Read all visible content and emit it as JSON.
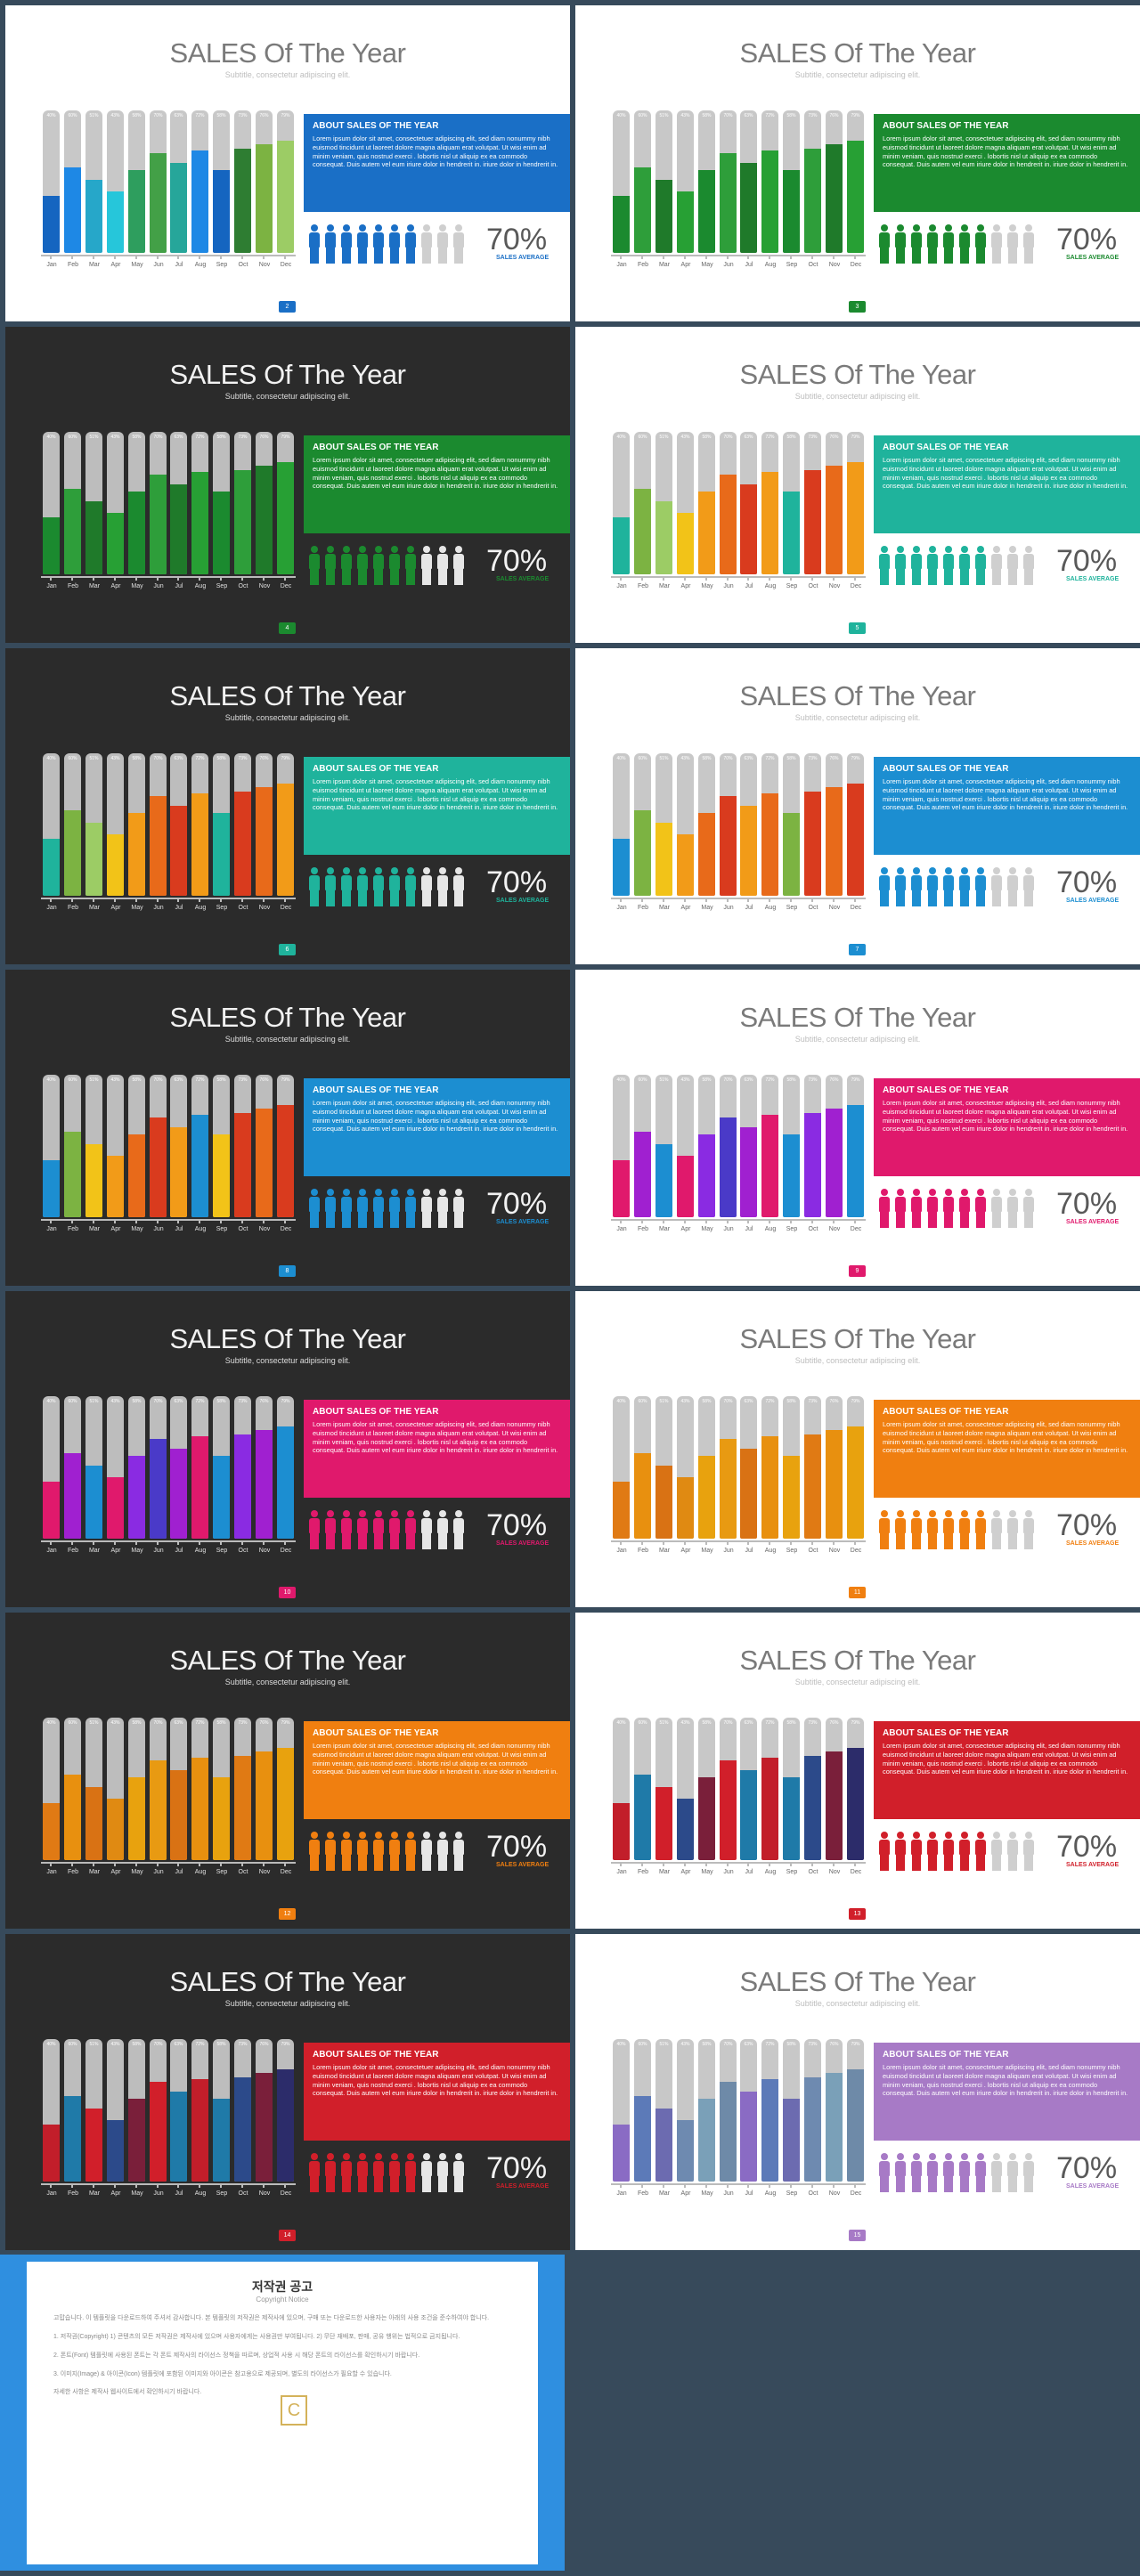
{
  "common": {
    "title": "SALES Of The Year",
    "subtitle": "Subtitle, consectetur adipiscing elit.",
    "panel_title": "ABOUT SALES OF THE YEAR",
    "panel_body": "Lorem ipsum dolor sit amet, consectetuer adipiscing elit, sed diam nonummy nibh euismod tincidunt ut laoreet dolore magna aliquam erat volutpat. Ut wisi enim ad minim veniam, quis nostrud exerci . lobortis nisl ut aliquip ex ea commodo consequat. Duis autem vel eum iriure dolor in hendrerit in. iriure dolor in hendrerit in.",
    "percent": "70%",
    "average_label": "SALES AVERAGE",
    "figures_total": 10,
    "figures_filled": 7
  },
  "chart_data": {
    "type": "bar",
    "categories": [
      "Jan",
      "Feb",
      "Mar",
      "Apr",
      "May",
      "Jun",
      "Jul",
      "Aug",
      "Sep",
      "Oct",
      "Nov",
      "Dec"
    ],
    "values": [
      40,
      60,
      51,
      43,
      58,
      70,
      63,
      72,
      58,
      73,
      76,
      79
    ],
    "ylim": [
      0,
      100
    ],
    "labels": [
      "40%",
      "60%",
      "51%",
      "43%",
      "58%",
      "70%",
      "63%",
      "72%",
      "58%",
      "73%",
      "76%",
      "79%"
    ]
  },
  "slides": [
    {
      "page": "2",
      "theme": "light",
      "accent": "#1a6fc6",
      "colors": [
        "#1565c0",
        "#1e88e5",
        "#26a7c9",
        "#26c6da",
        "#2e9e5e",
        "#43a047",
        "#26a69a",
        "#1e88e5",
        "#1565c0",
        "#2e7d32",
        "#7cb342",
        "#9ccc65"
      ]
    },
    {
      "page": "3",
      "theme": "light",
      "accent": "#1b8a2f",
      "colors": [
        "#1b8a2f",
        "#2e9e3a",
        "#1f7a2a",
        "#27a034",
        "#1b8a2f",
        "#2e9e3a",
        "#1f7a2a",
        "#27a034",
        "#1b8a2f",
        "#2e9e3a",
        "#1f7a2a",
        "#27a034"
      ]
    },
    {
      "page": "4",
      "theme": "dark",
      "accent": "#1b8a2f",
      "colors": [
        "#1b8a2f",
        "#2e9e3a",
        "#1f7a2a",
        "#27a034",
        "#1b8a2f",
        "#2e9e3a",
        "#1f7a2a",
        "#27a034",
        "#1b8a2f",
        "#2e9e3a",
        "#1f7a2a",
        "#27a034"
      ]
    },
    {
      "page": "5",
      "theme": "light",
      "accent": "#1fb39c",
      "colors": [
        "#1fb39c",
        "#7cb342",
        "#9ccc65",
        "#f2c318",
        "#f29b18",
        "#e86a1a",
        "#d93b1e",
        "#f29b18",
        "#1fb39c",
        "#d93b1e",
        "#e86a1a",
        "#f29b18"
      ]
    },
    {
      "page": "6",
      "theme": "dark",
      "accent": "#1fb39c",
      "colors": [
        "#1fb39c",
        "#7cb342",
        "#9ccc65",
        "#f2c318",
        "#f29b18",
        "#e86a1a",
        "#d93b1e",
        "#f29b18",
        "#1fb39c",
        "#d93b1e",
        "#e86a1a",
        "#f29b18"
      ]
    },
    {
      "page": "7",
      "theme": "light",
      "accent": "#1c8ed1",
      "colors": [
        "#1c8ed1",
        "#7cb342",
        "#f2c318",
        "#f29b18",
        "#e86a1a",
        "#d93b1e",
        "#f29b18",
        "#e86a1a",
        "#7cb342",
        "#d93b1e",
        "#e86a1a",
        "#d93b1e"
      ]
    },
    {
      "page": "8",
      "theme": "dark",
      "accent": "#1c8ed1",
      "colors": [
        "#1c8ed1",
        "#7cb342",
        "#f2c318",
        "#f29b18",
        "#e86a1a",
        "#d93b1e",
        "#f29b18",
        "#1c8ed1",
        "#f2c318",
        "#d93b1e",
        "#e86a1a",
        "#d93b1e"
      ]
    },
    {
      "page": "9",
      "theme": "light",
      "accent": "#e0196c",
      "colors": [
        "#e0196c",
        "#a020d0",
        "#1c8ed1",
        "#e0196c",
        "#8a2be2",
        "#4a3ac8",
        "#a020d0",
        "#e0196c",
        "#1c8ed1",
        "#8a2be2",
        "#a020d0",
        "#1c8ed1"
      ]
    },
    {
      "page": "10",
      "theme": "dark",
      "accent": "#e0196c",
      "colors": [
        "#e0196c",
        "#a020d0",
        "#1c8ed1",
        "#e0196c",
        "#8a2be2",
        "#4a3ac8",
        "#a020d0",
        "#e0196c",
        "#1c8ed1",
        "#8a2be2",
        "#a020d0",
        "#1c8ed1"
      ]
    },
    {
      "page": "11",
      "theme": "light",
      "accent": "#f07f10",
      "colors": [
        "#e07a14",
        "#e8900f",
        "#d97214",
        "#e08a12",
        "#e8a20e",
        "#e89a12",
        "#d97214",
        "#e8900f",
        "#e8a20e",
        "#e07a14",
        "#e8900f",
        "#e8a20e"
      ]
    },
    {
      "page": "12",
      "theme": "dark",
      "accent": "#f07f10",
      "colors": [
        "#e07a14",
        "#e8900f",
        "#d97214",
        "#e08a12",
        "#e8a20e",
        "#e89a12",
        "#d97214",
        "#e8900f",
        "#e8a20e",
        "#e07a14",
        "#e8900f",
        "#e8a20e"
      ]
    },
    {
      "page": "13",
      "theme": "light",
      "accent": "#d11f2a",
      "colors": [
        "#c21e2a",
        "#1f7aa8",
        "#d11f2a",
        "#2c4a8a",
        "#7a1f3a",
        "#d11f2a",
        "#1f7aa8",
        "#c21e2a",
        "#1f7aa8",
        "#2c4a8a",
        "#7a1f3a",
        "#2c2c6a"
      ]
    },
    {
      "page": "14",
      "theme": "dark",
      "accent": "#d11f2a",
      "colors": [
        "#c21e2a",
        "#1f7aa8",
        "#d11f2a",
        "#2c4a8a",
        "#7a1f3a",
        "#d11f2a",
        "#1f7aa8",
        "#c21e2a",
        "#1f7aa8",
        "#2c4a8a",
        "#7a1f3a",
        "#2c2c6a"
      ]
    },
    {
      "page": "15",
      "theme": "light",
      "accent": "#a77ac6",
      "colors": [
        "#8a6bc4",
        "#5c7ab8",
        "#6c6bb0",
        "#6e8ab0",
        "#7aa0b8",
        "#6e8aa8",
        "#8a6bc4",
        "#5c7ab8",
        "#6c6bb0",
        "#6e8ab0",
        "#7aa0b8",
        "#6e8aa8"
      ]
    }
  ],
  "copyright": {
    "title": "저작권 공고",
    "subtitle": "Copyright Notice",
    "paragraphs": [
      "고맙습니다. 이 템플릿을 다운로드하여 주셔서 감사합니다. 본 템플릿의 저작권은 제작사에 있으며, 구매 또는 다운로드한 사용자는 아래의 사용 조건을 준수하여야 합니다.",
      "1. 저작권(Copyright) 1) 콘텐츠의 모든 저작권은 제작사에 있으며 사용자에게는 사용권만 부여됩니다. 2) 무단 재배포, 판매, 공유 행위는 법적으로 금지됩니다.",
      "2. 폰트(Font) 템플릿에 사용된 폰트는 각 폰트 제작사의 라이선스 정책을 따르며, 상업적 사용 시 해당 폰트의 라이선스를 확인하시기 바랍니다.",
      "3. 이미지(Image) & 아이콘(Icon) 템플릿에 포함된 이미지와 아이콘은 참고용으로 제공되며, 별도의 라이선스가 필요할 수 있습니다.",
      "자세한 사항은 제작사 웹사이트에서 확인하시기 바랍니다."
    ]
  }
}
